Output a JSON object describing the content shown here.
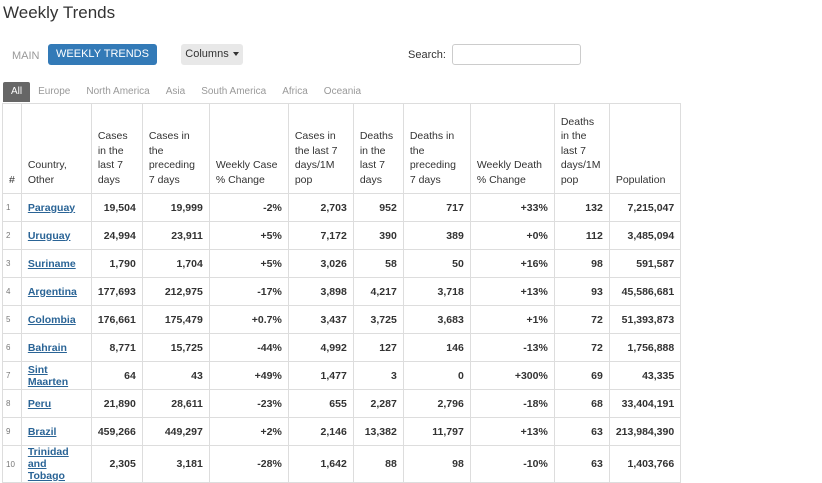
{
  "header": {
    "title": "Weekly Trends"
  },
  "toolbar": {
    "tabs": [
      "MAIN",
      "WEEKLY TRENDS"
    ],
    "columns_button": "Columns",
    "search_label": "Search:"
  },
  "regions": [
    "All",
    "Europe",
    "North America",
    "Asia",
    "South America",
    "Africa",
    "Oceania"
  ],
  "table": {
    "columns": [
      "#",
      "Country, Other",
      "Cases in the last 7 days",
      "Cases in the preceding 7 days",
      "Weekly Case % Change",
      "Cases in the last 7 days/1M pop",
      "Deaths in the last 7 days",
      "Deaths in the preceding 7 days",
      "Weekly Death % Change",
      "Deaths in the last 7 days/1M pop",
      "Population"
    ],
    "rows": [
      [
        "1",
        "Paraguay",
        "19,504",
        "19,999",
        "-2%",
        "2,703",
        "952",
        "717",
        "+33%",
        "132",
        "7,215,047"
      ],
      [
        "2",
        "Uruguay",
        "24,994",
        "23,911",
        "+5%",
        "7,172",
        "390",
        "389",
        "+0%",
        "112",
        "3,485,094"
      ],
      [
        "3",
        "Suriname",
        "1,790",
        "1,704",
        "+5%",
        "3,026",
        "58",
        "50",
        "+16%",
        "98",
        "591,587"
      ],
      [
        "4",
        "Argentina",
        "177,693",
        "212,975",
        "-17%",
        "3,898",
        "4,217",
        "3,718",
        "+13%",
        "93",
        "45,586,681"
      ],
      [
        "5",
        "Colombia",
        "176,661",
        "175,479",
        "+0.7%",
        "3,437",
        "3,725",
        "3,683",
        "+1%",
        "72",
        "51,393,873"
      ],
      [
        "6",
        "Bahrain",
        "8,771",
        "15,725",
        "-44%",
        "4,992",
        "127",
        "146",
        "-13%",
        "72",
        "1,756,888"
      ],
      [
        "7",
        "Sint Maarten",
        "64",
        "43",
        "+49%",
        "1,477",
        "3",
        "0",
        "+300%",
        "69",
        "43,335"
      ],
      [
        "8",
        "Peru",
        "21,890",
        "28,611",
        "-23%",
        "655",
        "2,287",
        "2,796",
        "-18%",
        "68",
        "33,404,191"
      ],
      [
        "9",
        "Brazil",
        "459,266",
        "449,297",
        "+2%",
        "2,146",
        "13,382",
        "11,797",
        "+13%",
        "63",
        "213,984,390"
      ],
      [
        "10",
        "Trinidad and Tobago",
        "2,305",
        "3,181",
        "-28%",
        "1,642",
        "88",
        "98",
        "-10%",
        "63",
        "1,403,766"
      ]
    ]
  }
}
